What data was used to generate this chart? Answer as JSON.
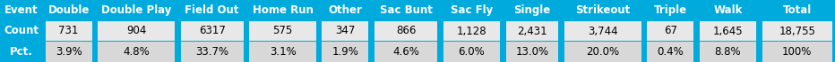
{
  "headers": [
    "Event",
    "Double",
    "Double Play",
    "Field Out",
    "Home Run",
    "Other",
    "Sac Bunt",
    "Sac Fly",
    "Single",
    "Strikeout",
    "Triple",
    "Walk",
    "Total"
  ],
  "row_count": [
    "Count",
    "731",
    "904",
    "6317",
    "575",
    "347",
    "866",
    "1,128",
    "2,431",
    "3,744",
    "67",
    "1,645",
    "18,755"
  ],
  "row_pct": [
    "Pct.",
    "3.9%",
    "4.8%",
    "33.7%",
    "3.1%",
    "1.9%",
    "4.6%",
    "6.0%",
    "13.0%",
    "20.0%",
    "0.4%",
    "8.8%",
    "100%"
  ],
  "header_bg": "#00AADD",
  "header_text": "#FFFFFF",
  "row_count_bg": "#E8E8E8",
  "row_count_text": "#000000",
  "row_pct_bg": "#D8D8D8",
  "row_pct_text": "#000000",
  "label_bg": "#00AADD",
  "label_text": "#FFFFFF",
  "border_color": "#00AADD",
  "font_size": 8.5,
  "fig_width": 9.32,
  "fig_height": 0.7,
  "col_widths_raw": [
    4.2,
    5.2,
    8.2,
    6.8,
    7.2,
    5.2,
    6.8,
    6.2,
    5.8,
    8.2,
    5.2,
    6.2,
    7.5
  ]
}
